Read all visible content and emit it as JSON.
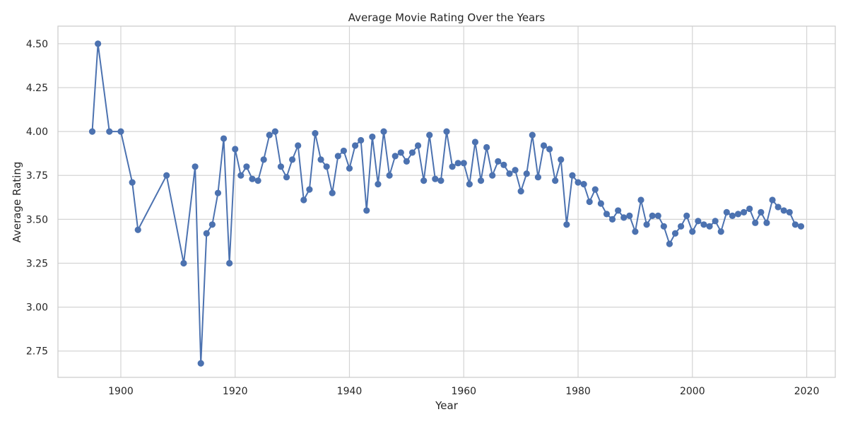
{
  "chart_data": {
    "type": "line",
    "title": "Average Movie Rating Over the Years",
    "xlabel": "Year",
    "ylabel": "Average Rating",
    "xlim": [
      1889,
      2025
    ],
    "ylim": [
      2.6,
      4.6
    ],
    "xticks": [
      1900,
      1920,
      1940,
      1960,
      1980,
      2000,
      2020
    ],
    "yticks": [
      2.75,
      3.0,
      3.25,
      3.5,
      3.75,
      4.0,
      4.25,
      4.5
    ],
    "ytick_labels": [
      "2.75",
      "3.00",
      "3.25",
      "3.50",
      "3.75",
      "4.00",
      "4.25",
      "4.50"
    ],
    "grid": true,
    "marker": "circle",
    "color": "#4c72b0",
    "x": [
      1895,
      1896,
      1898,
      1900,
      1902,
      1903,
      1908,
      1911,
      1913,
      1914,
      1915,
      1916,
      1917,
      1918,
      1919,
      1920,
      1921,
      1922,
      1923,
      1924,
      1925,
      1926,
      1927,
      1928,
      1929,
      1930,
      1931,
      1932,
      1933,
      1934,
      1935,
      1936,
      1937,
      1938,
      1939,
      1940,
      1941,
      1942,
      1943,
      1944,
      1945,
      1946,
      1947,
      1948,
      1949,
      1950,
      1951,
      1952,
      1953,
      1954,
      1955,
      1956,
      1957,
      1958,
      1959,
      1960,
      1961,
      1962,
      1963,
      1964,
      1965,
      1966,
      1967,
      1968,
      1969,
      1970,
      1971,
      1972,
      1973,
      1974,
      1975,
      1976,
      1977,
      1978,
      1979,
      1980,
      1981,
      1982,
      1983,
      1984,
      1985,
      1986,
      1987,
      1988,
      1989,
      1990,
      1991,
      1992,
      1993,
      1994,
      1995,
      1996,
      1997,
      1998,
      1999,
      2000,
      2001,
      2002,
      2003,
      2004,
      2005,
      2006,
      2007,
      2008,
      2009,
      2010,
      2011,
      2012,
      2013,
      2014,
      2015,
      2016,
      2017,
      2018,
      2019
    ],
    "y": [
      4.0,
      4.5,
      4.0,
      4.0,
      3.71,
      3.44,
      3.75,
      3.25,
      3.8,
      2.68,
      3.42,
      3.47,
      3.65,
      3.96,
      3.25,
      3.9,
      3.75,
      3.8,
      3.73,
      3.72,
      3.84,
      3.98,
      4.0,
      3.8,
      3.74,
      3.84,
      3.92,
      3.61,
      3.67,
      3.99,
      3.84,
      3.8,
      3.65,
      3.86,
      3.89,
      3.79,
      3.92,
      3.95,
      3.55,
      3.97,
      3.7,
      4.0,
      3.75,
      3.86,
      3.88,
      3.83,
      3.88,
      3.92,
      3.72,
      3.98,
      3.73,
      3.72,
      4.0,
      3.8,
      3.82,
      3.82,
      3.7,
      3.94,
      3.72,
      3.91,
      3.75,
      3.83,
      3.81,
      3.76,
      3.78,
      3.66,
      3.76,
      3.98,
      3.74,
      3.92,
      3.9,
      3.72,
      3.84,
      3.47,
      3.75,
      3.71,
      3.7,
      3.6,
      3.67,
      3.59,
      3.53,
      3.5,
      3.55,
      3.51,
      3.52,
      3.43,
      3.61,
      3.47,
      3.52,
      3.52,
      3.46,
      3.36,
      3.42,
      3.46,
      3.52,
      3.43,
      3.49,
      3.47,
      3.46,
      3.49,
      3.43,
      3.54,
      3.52,
      3.53,
      3.54,
      3.56,
      3.48,
      3.54,
      3.48,
      3.61,
      3.57,
      3.55,
      3.54,
      3.47,
      3.46
    ]
  }
}
